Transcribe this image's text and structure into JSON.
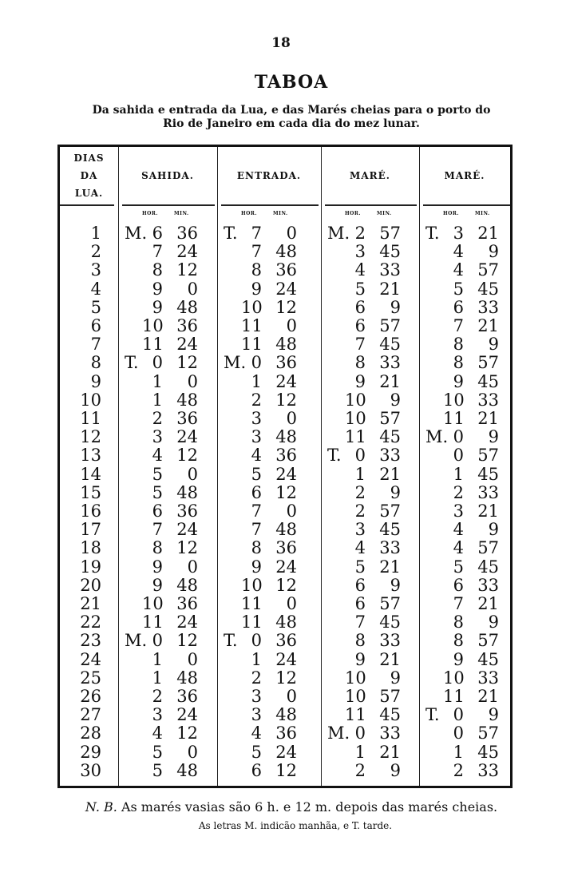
{
  "page_number": "18",
  "title": "TABOA",
  "subtitle_line1": "Da sahida e entrada da Lua, e das Marés cheias para o porto do",
  "subtitle_line2": "Rio de Janeiro em cada dia do mez lunar.",
  "table": {
    "headers": {
      "day": [
        "DIAS",
        "DA",
        "LUA."
      ],
      "sahida": "SAHIDA.",
      "entrada": "ENTRADA.",
      "mare1": "MARÉ.",
      "mare2": "MARÉ."
    },
    "sub_hour": "HOR.",
    "sub_min": "MIN.",
    "rows": [
      [
        "1",
        "M.",
        "6",
        "36",
        "T.",
        "7",
        "0",
        "M.",
        "2",
        "57",
        "T.",
        "3",
        "21"
      ],
      [
        "2",
        "",
        "7",
        "24",
        "",
        "7",
        "48",
        "",
        "3",
        "45",
        "",
        "4",
        "9"
      ],
      [
        "3",
        "",
        "8",
        "12",
        "",
        "8",
        "36",
        "",
        "4",
        "33",
        "",
        "4",
        "57"
      ],
      [
        "4",
        "",
        "9",
        "0",
        "",
        "9",
        "24",
        "",
        "5",
        "21",
        "",
        "5",
        "45"
      ],
      [
        "5",
        "",
        "9",
        "48",
        "",
        "10",
        "12",
        "",
        "6",
        "9",
        "",
        "6",
        "33"
      ],
      [
        "6",
        "",
        "10",
        "36",
        "",
        "11",
        "0",
        "",
        "6",
        "57",
        "",
        "7",
        "21"
      ],
      [
        "7",
        "",
        "11",
        "24",
        "",
        "11",
        "48",
        "",
        "7",
        "45",
        "",
        "8",
        "9"
      ],
      [
        "8",
        "T.",
        "0",
        "12",
        "M.",
        "0",
        "36",
        "",
        "8",
        "33",
        "",
        "8",
        "57"
      ],
      [
        "9",
        "",
        "1",
        "0",
        "",
        "1",
        "24",
        "",
        "9",
        "21",
        "",
        "9",
        "45"
      ],
      [
        "10",
        "",
        "1",
        "48",
        "",
        "2",
        "12",
        "",
        "10",
        "9",
        "",
        "10",
        "33"
      ],
      [
        "11",
        "",
        "2",
        "36",
        "",
        "3",
        "0",
        "",
        "10",
        "57",
        "",
        "11",
        "21"
      ],
      [
        "12",
        "",
        "3",
        "24",
        "",
        "3",
        "48",
        "",
        "11",
        "45",
        "M.",
        "0",
        "9"
      ],
      [
        "13",
        "",
        "4",
        "12",
        "",
        "4",
        "36",
        "T.",
        "0",
        "33",
        "",
        "0",
        "57"
      ],
      [
        "14",
        "",
        "5",
        "0",
        "",
        "5",
        "24",
        "",
        "1",
        "21",
        "",
        "1",
        "45"
      ],
      [
        "15",
        "",
        "5",
        "48",
        "",
        "6",
        "12",
        "",
        "2",
        "9",
        "",
        "2",
        "33"
      ],
      [
        "16",
        "",
        "6",
        "36",
        "",
        "7",
        "0",
        "",
        "2",
        "57",
        "",
        "3",
        "21"
      ],
      [
        "17",
        "",
        "7",
        "24",
        "",
        "7",
        "48",
        "",
        "3",
        "45",
        "",
        "4",
        "9"
      ],
      [
        "18",
        "",
        "8",
        "12",
        "",
        "8",
        "36",
        "",
        "4",
        "33",
        "",
        "4",
        "57"
      ],
      [
        "19",
        "",
        "9",
        "0",
        "",
        "9",
        "24",
        "",
        "5",
        "21",
        "",
        "5",
        "45"
      ],
      [
        "20",
        "",
        "9",
        "48",
        "",
        "10",
        "12",
        "",
        "6",
        "9",
        "",
        "6",
        "33"
      ],
      [
        "21",
        "",
        "10",
        "36",
        "",
        "11",
        "0",
        "",
        "6",
        "57",
        "",
        "7",
        "21"
      ],
      [
        "22",
        "",
        "11",
        "24",
        "",
        "11",
        "48",
        "",
        "7",
        "45",
        "",
        "8",
        "9"
      ],
      [
        "23",
        "M.",
        "0",
        "12",
        "T.",
        "0",
        "36",
        "",
        "8",
        "33",
        "",
        "8",
        "57"
      ],
      [
        "24",
        "",
        "1",
        "0",
        "",
        "1",
        "24",
        "",
        "9",
        "21",
        "",
        "9",
        "45"
      ],
      [
        "25",
        "",
        "1",
        "48",
        "",
        "2",
        "12",
        "",
        "10",
        "9",
        "",
        "10",
        "33"
      ],
      [
        "26",
        "",
        "2",
        "36",
        "",
        "3",
        "0",
        "",
        "10",
        "57",
        "",
        "11",
        "21"
      ],
      [
        "27",
        "",
        "3",
        "24",
        "",
        "3",
        "48",
        "",
        "11",
        "45",
        "T.",
        "0",
        "9"
      ],
      [
        "28",
        "",
        "4",
        "12",
        "",
        "4",
        "36",
        "M.",
        "0",
        "33",
        "",
        "0",
        "57"
      ],
      [
        "29",
        "",
        "5",
        "0",
        "",
        "5",
        "24",
        "",
        "1",
        "21",
        "",
        "1",
        "45"
      ],
      [
        "30",
        "",
        "5",
        "48",
        "",
        "6",
        "12",
        "",
        "2",
        "9",
        "",
        "2",
        "33"
      ]
    ]
  },
  "note_prefix": "N. B.",
  "note_text": "As marés vasias são 6 h. e 12 m. depois das marés cheias.",
  "note_line2": "As letras M. indicão manhãa, e T. tarde."
}
